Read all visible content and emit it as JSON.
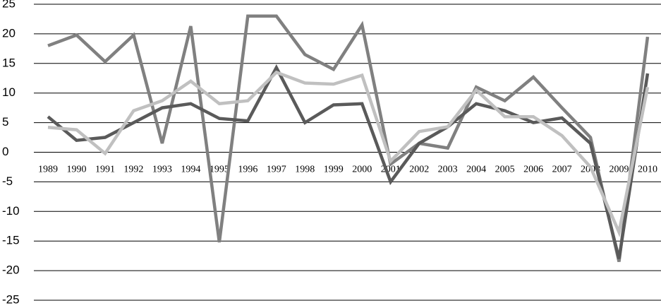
{
  "chart_data": {
    "type": "line",
    "categories": [
      "1989",
      "1990",
      "1991",
      "1992",
      "1993",
      "1994",
      "1995",
      "1996",
      "1997",
      "1998",
      "1999",
      "2000",
      "2001",
      "2002",
      "2003",
      "2004",
      "2005",
      "2006",
      "2007",
      "2008",
      "2009",
      "2010"
    ],
    "series": [
      {
        "color": "#808080",
        "values": [
          18,
          19.8,
          15.3,
          19.8,
          1.5,
          21.3,
          -15.2,
          23,
          23,
          16.5,
          14,
          21.5,
          -2,
          1.5,
          0.7,
          11,
          8.7,
          12.7,
          7.5,
          2.5,
          -18.5,
          19.5
        ]
      },
      {
        "color": "#5a5a5a",
        "values": [
          6,
          2,
          2.5,
          5,
          7.5,
          8.2,
          5.7,
          5.3,
          14.3,
          5,
          8,
          8.2,
          -5,
          1.5,
          4.3,
          8.2,
          7,
          5,
          5.8,
          1.5,
          -18,
          13.3
        ]
      },
      {
        "color": "#c0c0c0",
        "values": [
          4.2,
          3.8,
          -0.2,
          7,
          8.7,
          12,
          8.2,
          8.7,
          13.5,
          11.7,
          11.5,
          13,
          -1.5,
          3.5,
          4.3,
          10.5,
          6,
          6,
          2.8,
          -2.5,
          -13.5,
          11
        ]
      }
    ],
    "ylim": [
      -25,
      25
    ],
    "yticks": [
      -25,
      -20,
      -15,
      -10,
      -5,
      0,
      5,
      10,
      15,
      20,
      25
    ],
    "grid": true
  }
}
